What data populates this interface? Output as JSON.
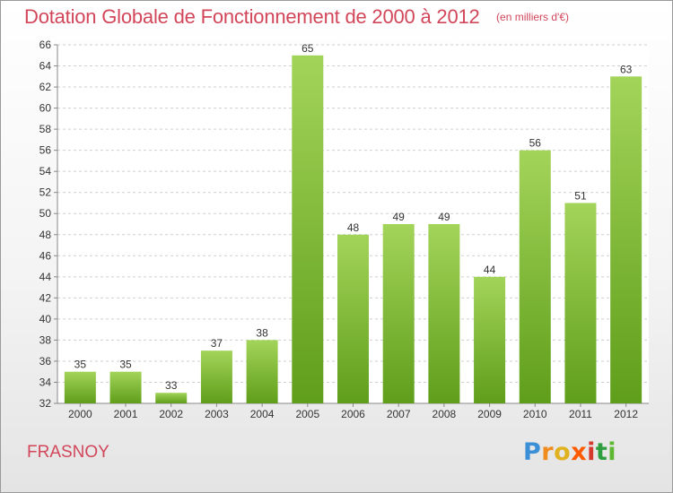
{
  "header": {
    "title": "Dotation Globale de Fonctionnement de 2000 à 2012",
    "units": "(en milliers d'€)"
  },
  "footer": {
    "commune": "FRASNOY",
    "logo": "Proxiti"
  },
  "colors": {
    "title": "#d2465a",
    "bar_light": "#a3d45a",
    "bar_dark": "#5f9e1a",
    "grid": "#cfcfcf"
  },
  "chart_data": {
    "type": "bar",
    "title": "Dotation Globale de Fonctionnement de 2000 à 2012",
    "subtitle": "(en milliers d'€)",
    "categories": [
      "2000",
      "2001",
      "2002",
      "2003",
      "2004",
      "2005",
      "2006",
      "2007",
      "2008",
      "2009",
      "2010",
      "2011",
      "2012"
    ],
    "values": [
      35,
      35,
      33,
      37,
      38,
      65,
      48,
      49,
      49,
      44,
      56,
      51,
      63
    ],
    "ylim": [
      32,
      66
    ],
    "ytick_step": 2,
    "grid": true,
    "legend": "none",
    "data_labels": true
  }
}
